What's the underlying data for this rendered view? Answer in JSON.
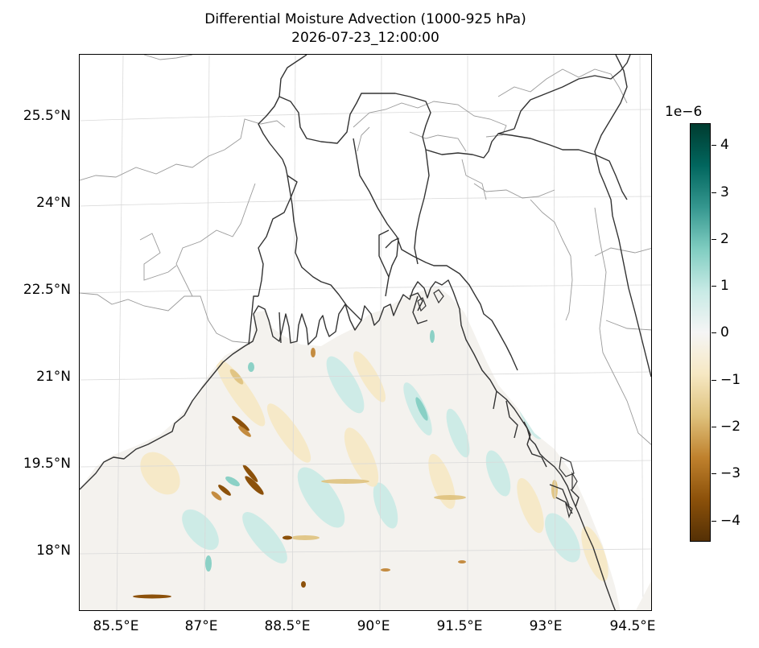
{
  "title": "Differential Moisture Advection (1000-925 hPa)",
  "subtitle": "2026-07-23_12:00:00",
  "map": {
    "lon_range": [
      84.5,
      96.0
    ],
    "lat_range": [
      16.8,
      26.8
    ],
    "lat_ticks": [
      "25.5°N",
      "24°N",
      "22.5°N",
      "21°N",
      "19.5°N",
      "18°N"
    ],
    "lon_ticks": [
      "85.5°E",
      "87°E",
      "88.5°E",
      "90°E",
      "91.5°E",
      "93°E",
      "94.5°E"
    ],
    "gridlines": true,
    "field": "differential moisture advection over Bay of Bengal",
    "coastline_color": "#333333",
    "border_color": "#999999"
  },
  "colorbar": {
    "exponent_label": "1e−6",
    "ticks": [
      "4",
      "3",
      "2",
      "1",
      "0",
      "−1",
      "−2",
      "−3",
      "−4"
    ],
    "range": [
      -4.4,
      4.4
    ],
    "colormap": "BrBG",
    "colors": [
      "#543005",
      "#8c510a",
      "#bf812d",
      "#dfc27d",
      "#f6e8c3",
      "#f5f5f5",
      "#c7eae5",
      "#80cdc1",
      "#35978f",
      "#01665e",
      "#003c30"
    ]
  }
}
